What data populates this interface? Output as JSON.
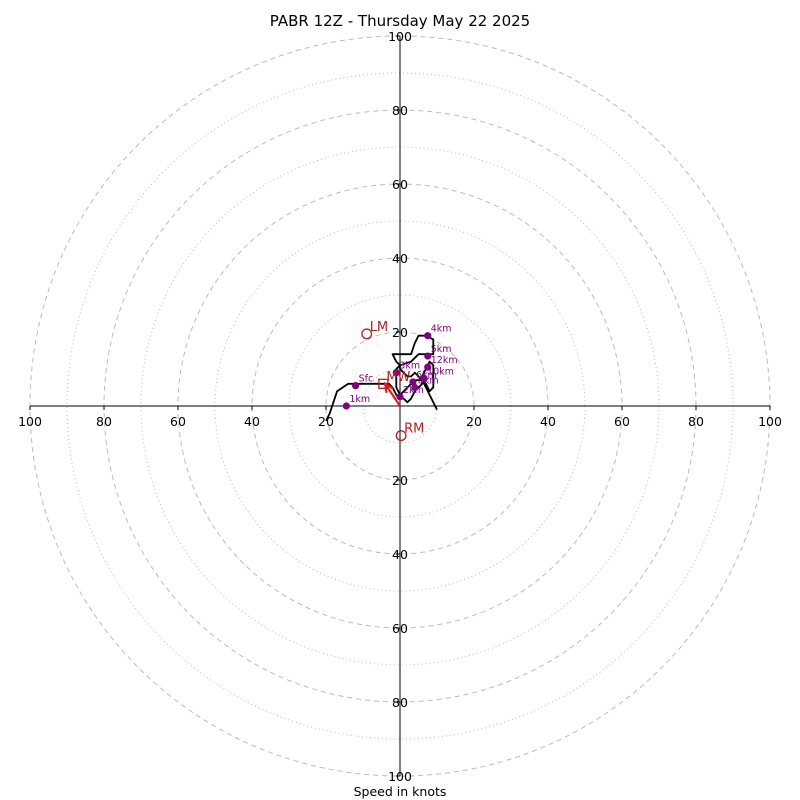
{
  "chart_data": {
    "type": "hodograph",
    "title": "PABR 12Z - Thursday May 22 2025",
    "xlabel": "Speed in knots",
    "units": "knots",
    "rings_major": [
      20,
      40,
      60,
      80,
      100
    ],
    "rings_minor": [
      10,
      30,
      50,
      70,
      90
    ],
    "tick_labels": {
      "left": [
        "100",
        "80",
        "60",
        "40",
        "20"
      ],
      "right": [
        "20",
        "40",
        "60",
        "80",
        "100"
      ],
      "top": [
        "100",
        "80",
        "60",
        "40",
        "20"
      ],
      "bottom": [
        "20",
        "40",
        "60",
        "80",
        "100"
      ]
    },
    "axis_range": [
      -100,
      100
    ],
    "grid": true,
    "colors": {
      "trace": "#000000",
      "height_markers": "#800080",
      "storm_markers": "#b22222",
      "mean_wind_vector": "#e41a1c",
      "grid": "#bbbbbb"
    },
    "trace": [
      [
        -20,
        -4
      ],
      [
        -19,
        -2
      ],
      [
        -17,
        4
      ],
      [
        -14,
        6
      ],
      [
        -12,
        6
      ],
      [
        -6,
        6
      ],
      [
        -3,
        6
      ],
      [
        -2,
        5
      ],
      [
        -1,
        3
      ],
      [
        0,
        2
      ],
      [
        1,
        2
      ],
      [
        2,
        1
      ],
      [
        3,
        2
      ],
      [
        4,
        4
      ],
      [
        5,
        5
      ],
      [
        6,
        6
      ],
      [
        6,
        8
      ],
      [
        7,
        10
      ],
      [
        8,
        12
      ],
      [
        9,
        11
      ],
      [
        9,
        5
      ],
      [
        8,
        4
      ],
      [
        7,
        6
      ],
      [
        6,
        7
      ],
      [
        4,
        7
      ],
      [
        2,
        5
      ],
      [
        1,
        4
      ],
      [
        0,
        3
      ],
      [
        -1,
        5
      ],
      [
        -1,
        8
      ],
      [
        -1,
        10
      ],
      [
        0,
        11
      ],
      [
        3,
        12
      ],
      [
        5,
        14
      ],
      [
        7,
        14
      ],
      [
        9,
        14
      ],
      [
        9,
        15
      ],
      [
        9,
        16
      ],
      [
        9,
        18
      ],
      [
        7,
        19
      ],
      [
        5,
        19
      ],
      [
        4,
        17
      ],
      [
        3,
        14
      ],
      [
        1,
        14
      ],
      [
        -2,
        14
      ],
      [
        -1,
        12
      ],
      [
        0,
        11
      ],
      [
        0,
        10
      ],
      [
        1,
        9
      ],
      [
        2,
        8
      ],
      [
        3,
        8
      ],
      [
        4,
        9
      ],
      [
        5,
        8
      ],
      [
        6,
        7
      ],
      [
        7,
        5
      ],
      [
        8,
        3
      ],
      [
        9,
        1
      ],
      [
        10,
        -1
      ]
    ],
    "height_markers": [
      {
        "label": "Sfc",
        "u": -12,
        "v": 5.5
      },
      {
        "label": "1km",
        "u": -14.5,
        "v": 0
      },
      {
        "label": "2km",
        "u": 0,
        "v": 2.5
      },
      {
        "label": "3km",
        "u": -1,
        "v": 9
      },
      {
        "label": "4km",
        "u": 7.5,
        "v": 19
      },
      {
        "label": "5km",
        "u": 7.5,
        "v": 13.5
      },
      {
        "label": "6km",
        "u": 3.5,
        "v": 6.5
      },
      {
        "label": "8km",
        "u": 4,
        "v": 5
      },
      {
        "label": "10km",
        "u": 6.5,
        "v": 7.5
      },
      {
        "label": "12km",
        "u": 7.5,
        "v": 10.5
      }
    ],
    "storm_motions": [
      {
        "label": "LM",
        "u": -9,
        "v": 19.5,
        "shape": "circle"
      },
      {
        "label": "RM",
        "u": 0.3,
        "v": -8,
        "shape": "circle"
      },
      {
        "label": "MW",
        "u": -4.5,
        "v": 6,
        "shape": "square"
      }
    ],
    "mean_wind_vector": {
      "u": -4,
      "v": 6
    }
  }
}
